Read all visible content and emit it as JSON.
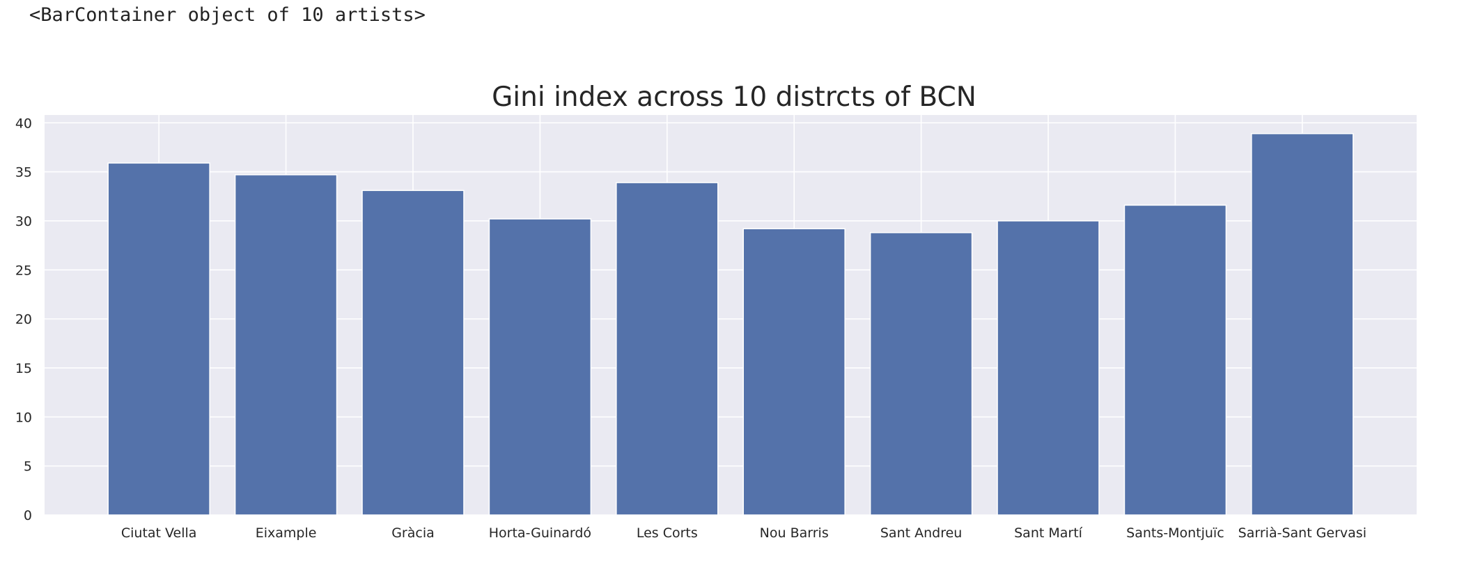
{
  "output": {
    "repr_text": "<BarContainer object of 10 artists>"
  },
  "colors": {
    "bar": "#5472aa",
    "plot_background": "#eaeaf2",
    "grid": "#ffffff",
    "text": "#262626"
  },
  "chart_data": {
    "type": "bar",
    "title": "Gini index across 10 distrcts of BCN",
    "xlabel": "",
    "ylabel": "",
    "categories": [
      "Ciutat Vella",
      "Eixample",
      "Gràcia",
      "Horta-Guinardó",
      "Les Corts",
      "Nou Barris",
      "Sant Andreu",
      "Sant Martí",
      "Sants-Montjuïc",
      "Sarrià-Sant Gervasi"
    ],
    "values": [
      35.9,
      34.7,
      33.1,
      30.2,
      33.9,
      29.2,
      28.8,
      30.0,
      31.6,
      38.9
    ],
    "ylim": [
      0,
      40.8
    ],
    "yticks": [
      0,
      5,
      10,
      15,
      20,
      25,
      30,
      35,
      40
    ],
    "grid": true,
    "legend": "none"
  }
}
